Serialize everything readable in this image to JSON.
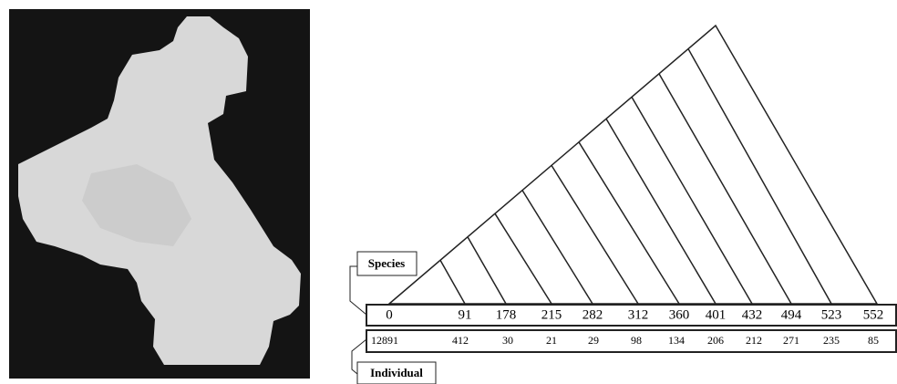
{
  "diagram": {
    "species_label": "Species",
    "individual_label": "Individual",
    "species_row": [
      "0",
      "91",
      "178",
      "215",
      "282",
      "312",
      "360",
      "401",
      "432",
      "494",
      "523",
      "552"
    ],
    "individual_row": [
      "12891",
      "412",
      "30",
      "21",
      "29",
      "98",
      "134",
      "206",
      "212",
      "271",
      "235",
      "85"
    ]
  }
}
